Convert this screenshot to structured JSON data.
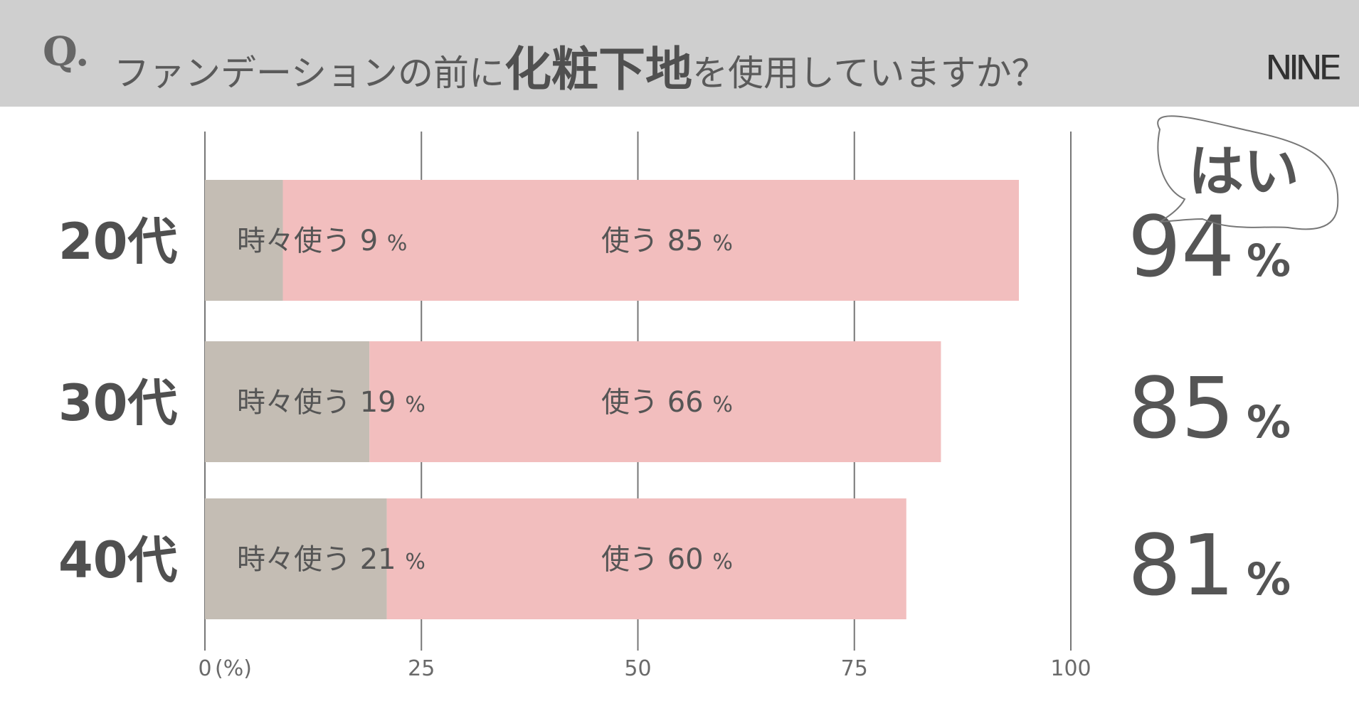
{
  "header": {
    "q_mark": "Q.",
    "question_pre": "ファンデーションの前に",
    "question_bold": "化粧下地",
    "question_post": "を使用していますか？",
    "logo": "NINE"
  },
  "colors": {
    "sometimes": "#c4bdb4",
    "use": "#f2bebe",
    "header_bg": "#cfcfcf",
    "text": "#555555"
  },
  "chart_data": {
    "type": "bar",
    "orientation": "horizontal",
    "stacked": true,
    "categories": [
      "20代",
      "30代",
      "40代"
    ],
    "series": [
      {
        "name": "時々使う",
        "values": [
          9,
          19,
          21
        ]
      },
      {
        "name": "使う",
        "values": [
          85,
          66,
          60
        ]
      }
    ],
    "xlim": [
      0,
      100
    ],
    "x_ticks": [
      "0",
      "25",
      "50",
      "75",
      "100"
    ],
    "x_unit": "(%)",
    "percent_sign": "%",
    "yes_label": "はい",
    "totals": [
      94,
      85,
      81
    ],
    "grid": true
  }
}
